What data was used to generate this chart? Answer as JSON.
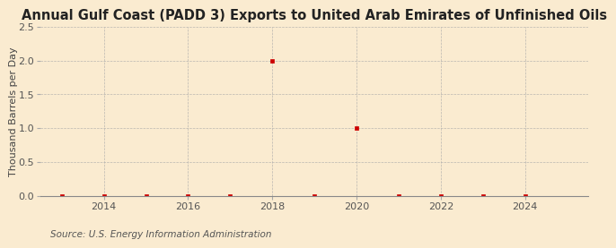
{
  "title": "Annual Gulf Coast (PADD 3) Exports to United Arab Emirates of Unfinished Oils",
  "ylabel": "Thousand Barrels per Day",
  "source": "Source: U.S. Energy Information Administration",
  "background_color": "#faebd0",
  "years": [
    2013,
    2014,
    2015,
    2016,
    2017,
    2018,
    2019,
    2020,
    2021,
    2022,
    2023,
    2024
  ],
  "values": [
    0.0,
    0.0,
    0.0,
    0.0,
    0.0,
    2.0,
    0.0,
    1.0,
    0.0,
    0.0,
    0.0,
    0.0
  ],
  "marker_color": "#cc0000",
  "xlim": [
    2012.5,
    2025.5
  ],
  "ylim": [
    0.0,
    2.5
  ],
  "yticks": [
    0.0,
    0.5,
    1.0,
    1.5,
    2.0,
    2.5
  ],
  "xticks": [
    2014,
    2016,
    2018,
    2020,
    2022,
    2024
  ],
  "grid_color": "#aaaaaa",
  "title_fontsize": 10.5,
  "label_fontsize": 8,
  "tick_fontsize": 8,
  "source_fontsize": 7.5
}
